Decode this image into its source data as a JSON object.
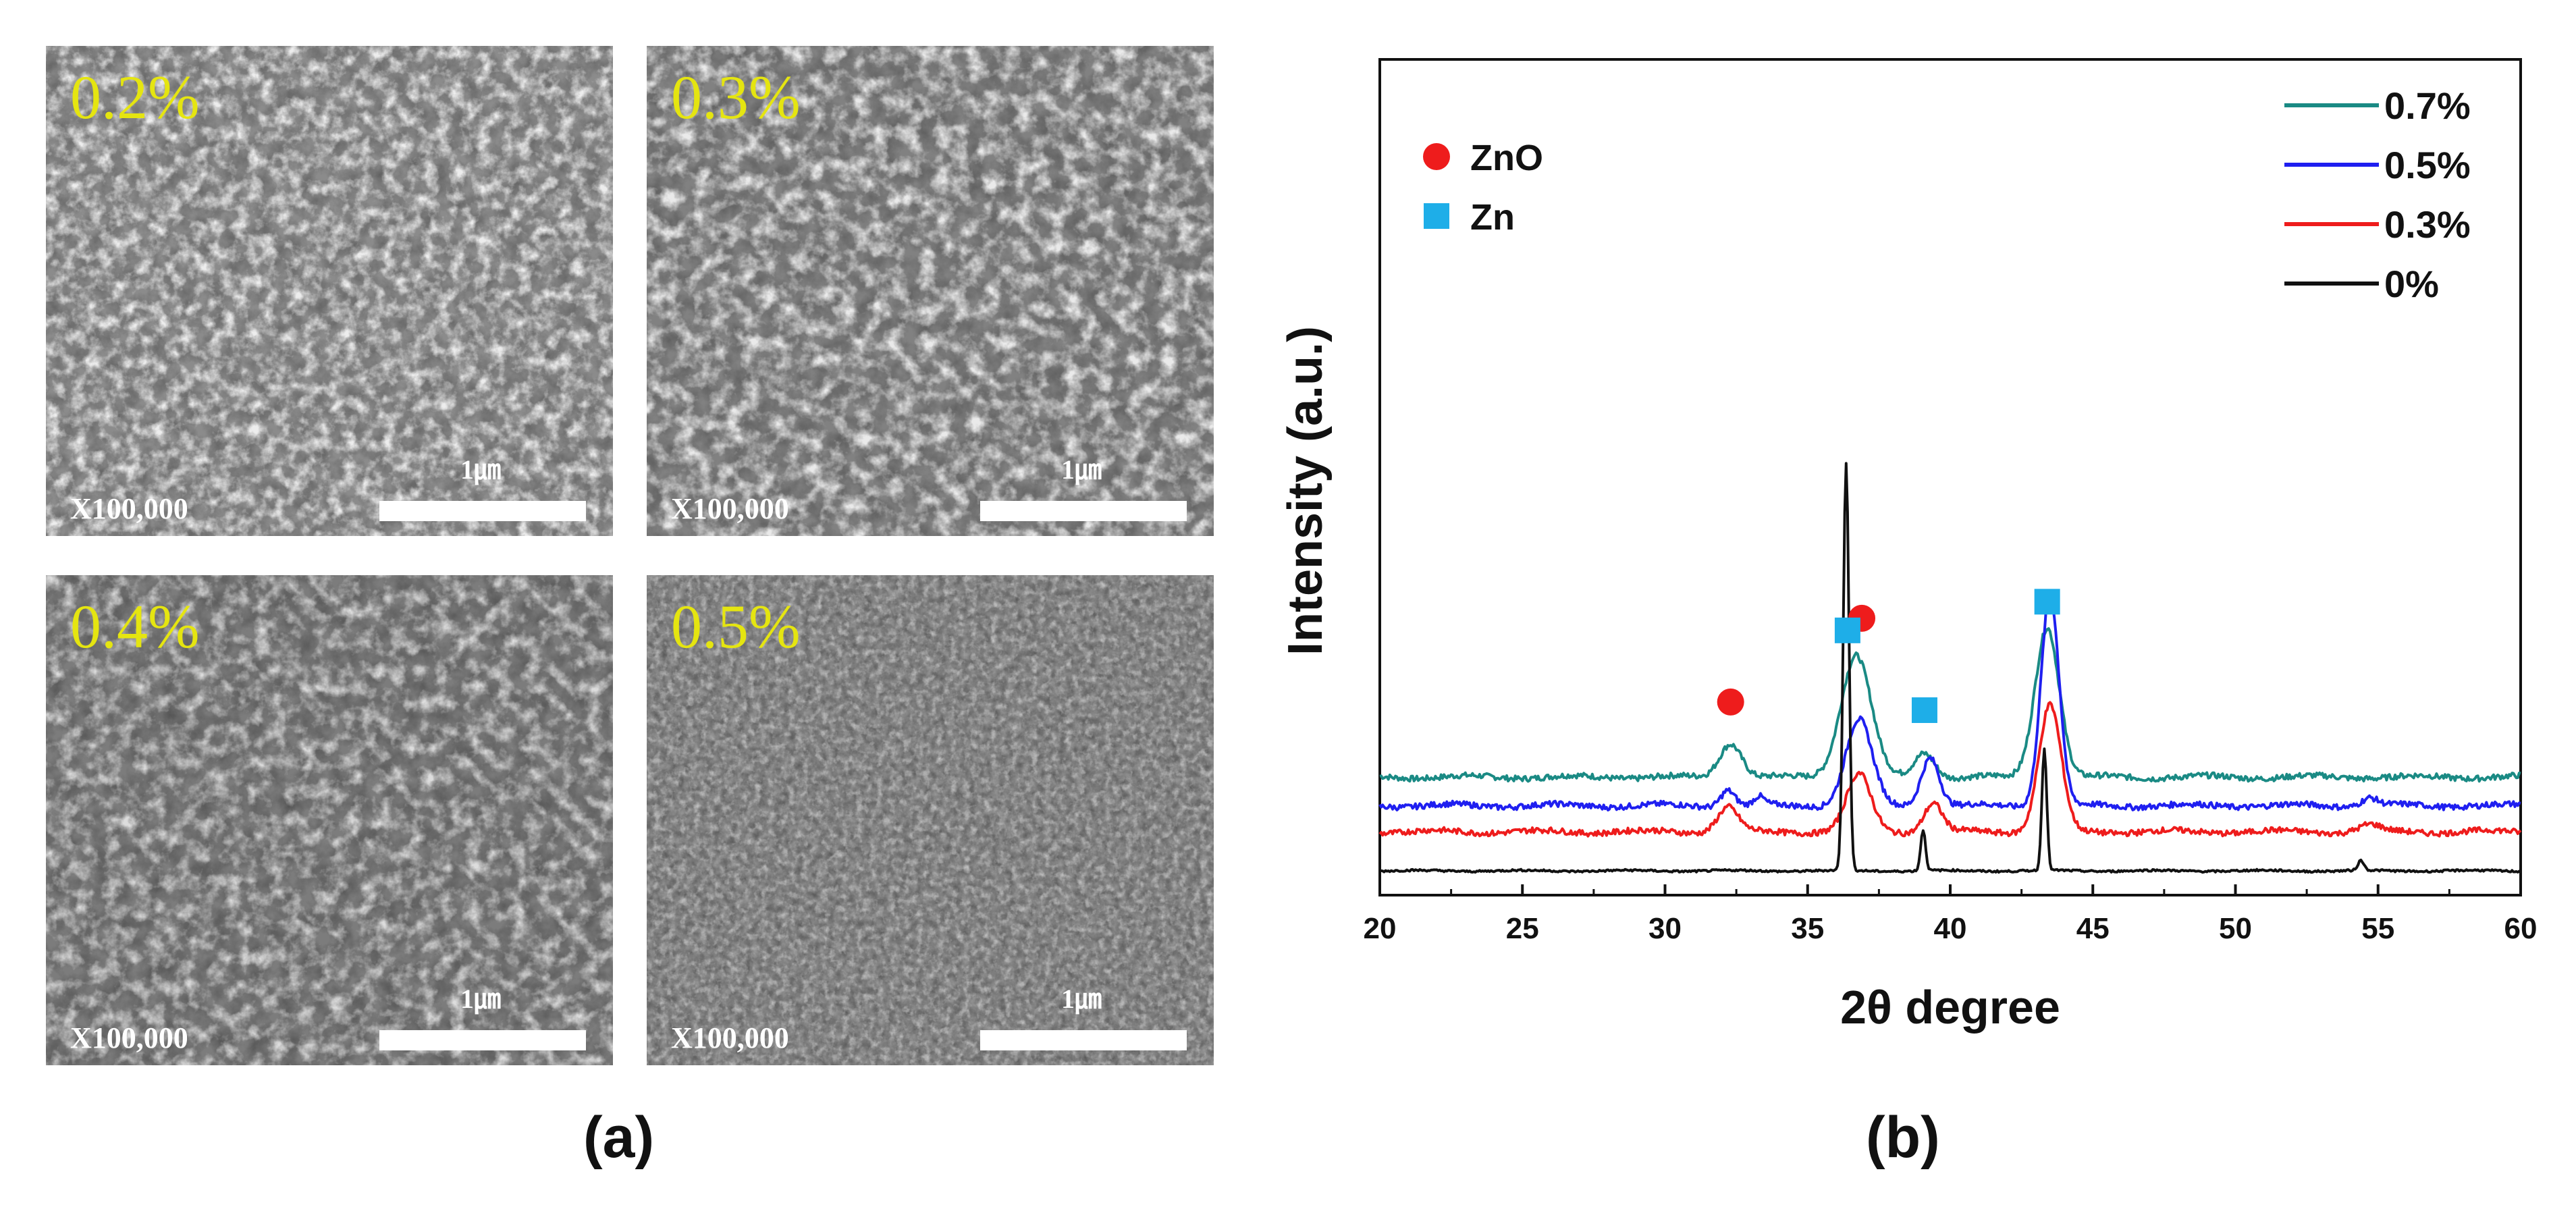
{
  "sem_panels": [
    {
      "label": "0.2%",
      "magnification": "X100,000",
      "scalebar_label": "1㎛"
    },
    {
      "label": "0.3%",
      "magnification": "X100,000",
      "scalebar_label": "1㎛"
    },
    {
      "label": "0.4%",
      "magnification": "X100,000",
      "scalebar_label": "1㎛"
    },
    {
      "label": "0.5%",
      "magnification": "X100,000",
      "scalebar_label": "1㎛"
    }
  ],
  "captions": {
    "a": "(a)",
    "b": "(b)"
  },
  "chart_data": {
    "type": "line",
    "title": "",
    "xlabel": "2θ degree",
    "ylabel": "Intensity (a.u.)",
    "xlim": [
      20,
      60
    ],
    "xticks": [
      20,
      25,
      30,
      35,
      40,
      45,
      50,
      55,
      60
    ],
    "yticks_shown": false,
    "legend_position": "top-right",
    "markers": [
      {
        "name": "ZnO",
        "shape": "circle",
        "color": "#ee1c1c",
        "positions": [
          32.3,
          36.9
        ]
      },
      {
        "name": "Zn",
        "shape": "square",
        "color": "#1eaee8",
        "positions": [
          36.4,
          39.1,
          43.4
        ]
      }
    ],
    "series": [
      {
        "name": "0.7%",
        "color": "#1a8a84",
        "baseline": 0.12,
        "peaks": [
          {
            "x": 32.3,
            "h": 0.042,
            "w": 0.55
          },
          {
            "x": 36.7,
            "h": 0.15,
            "w": 0.75
          },
          {
            "x": 39.1,
            "h": 0.03,
            "w": 0.5
          },
          {
            "x": 43.4,
            "h": 0.185,
            "w": 0.6
          }
        ]
      },
      {
        "name": "0.5%",
        "color": "#1f1ff0",
        "baseline": 0.085,
        "peaks": [
          {
            "x": 32.2,
            "h": 0.02,
            "w": 0.35
          },
          {
            "x": 33.3,
            "h": 0.01,
            "w": 0.25
          },
          {
            "x": 36.8,
            "h": 0.105,
            "w": 0.65
          },
          {
            "x": 39.3,
            "h": 0.06,
            "w": 0.45
          },
          {
            "x": 43.5,
            "h": 0.26,
            "w": 0.45
          },
          {
            "x": 54.7,
            "h": 0.01,
            "w": 0.4
          }
        ]
      },
      {
        "name": "0.3%",
        "color": "#ee1c1c",
        "baseline": 0.053,
        "peaks": [
          {
            "x": 32.2,
            "h": 0.03,
            "w": 0.5
          },
          {
            "x": 36.8,
            "h": 0.07,
            "w": 0.6
          },
          {
            "x": 39.4,
            "h": 0.035,
            "w": 0.45
          },
          {
            "x": 43.5,
            "h": 0.155,
            "w": 0.55
          },
          {
            "x": 54.7,
            "h": 0.008,
            "w": 0.5
          }
        ]
      },
      {
        "name": "0%",
        "color": "#111111",
        "baseline": 0.005,
        "peaks": [
          {
            "x": 36.35,
            "h": 0.5,
            "w": 0.14
          },
          {
            "x": 39.05,
            "h": 0.05,
            "w": 0.12
          },
          {
            "x": 43.3,
            "h": 0.15,
            "w": 0.12
          },
          {
            "x": 54.4,
            "h": 0.012,
            "w": 0.15
          }
        ]
      }
    ]
  }
}
